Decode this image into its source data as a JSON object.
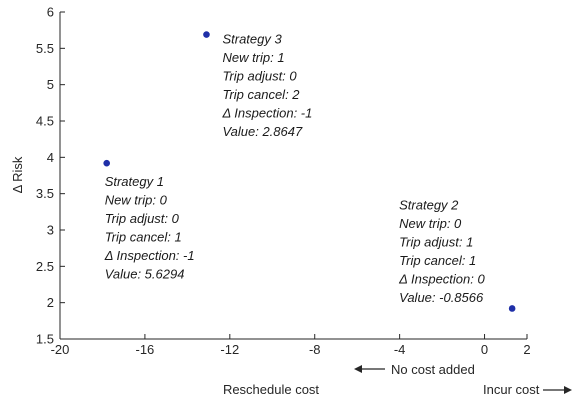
{
  "chart_data": {
    "type": "scatter",
    "xlabel": "Reschedule cost",
    "ylabel": "Δ Risk",
    "xlim": [
      -20,
      2
    ],
    "ylim": [
      1.5,
      6
    ],
    "xticks": [
      "-20",
      "-16",
      "-12",
      "-8",
      "-4",
      "0",
      "2"
    ],
    "xtick_values": [
      -20,
      -16,
      -12,
      -8,
      -4,
      0,
      2
    ],
    "yticks": [
      "1.5",
      "2",
      "2.5",
      "3",
      "3.5",
      "4",
      "4.5",
      "5",
      "5.5",
      "6"
    ],
    "ytick_values": [
      1.5,
      2,
      2.5,
      3,
      3.5,
      4,
      4.5,
      5,
      5.5,
      6
    ],
    "grid": false,
    "marker_color": "#1f2fa8",
    "points": [
      {
        "x": -17.8,
        "y": 3.92,
        "label": "Strategy 1",
        "annotation": [
          "Strategy 1",
          "New trip: 0",
          "Trip adjust: 0",
          "Trip cancel: 1",
          "Δ Inspection: -1",
          "Value: 5.6294"
        ]
      },
      {
        "x": 1.3,
        "y": 1.92,
        "label": "Strategy 2",
        "annotation": [
          "Strategy 2",
          "New trip: 0",
          "Trip adjust: 1",
          "Trip cancel: 1",
          "Δ Inspection: 0",
          "Value: -0.8566"
        ]
      },
      {
        "x": -13.1,
        "y": 5.69,
        "label": "Strategy 3",
        "annotation": [
          "Strategy 3",
          "New trip: 1",
          "Trip adjust: 0",
          "Trip cancel: 2",
          "Δ Inspection: -1",
          "Value: 2.8647"
        ]
      }
    ],
    "arrow_labels": {
      "left": "No cost added",
      "right": "Incur cost"
    }
  }
}
